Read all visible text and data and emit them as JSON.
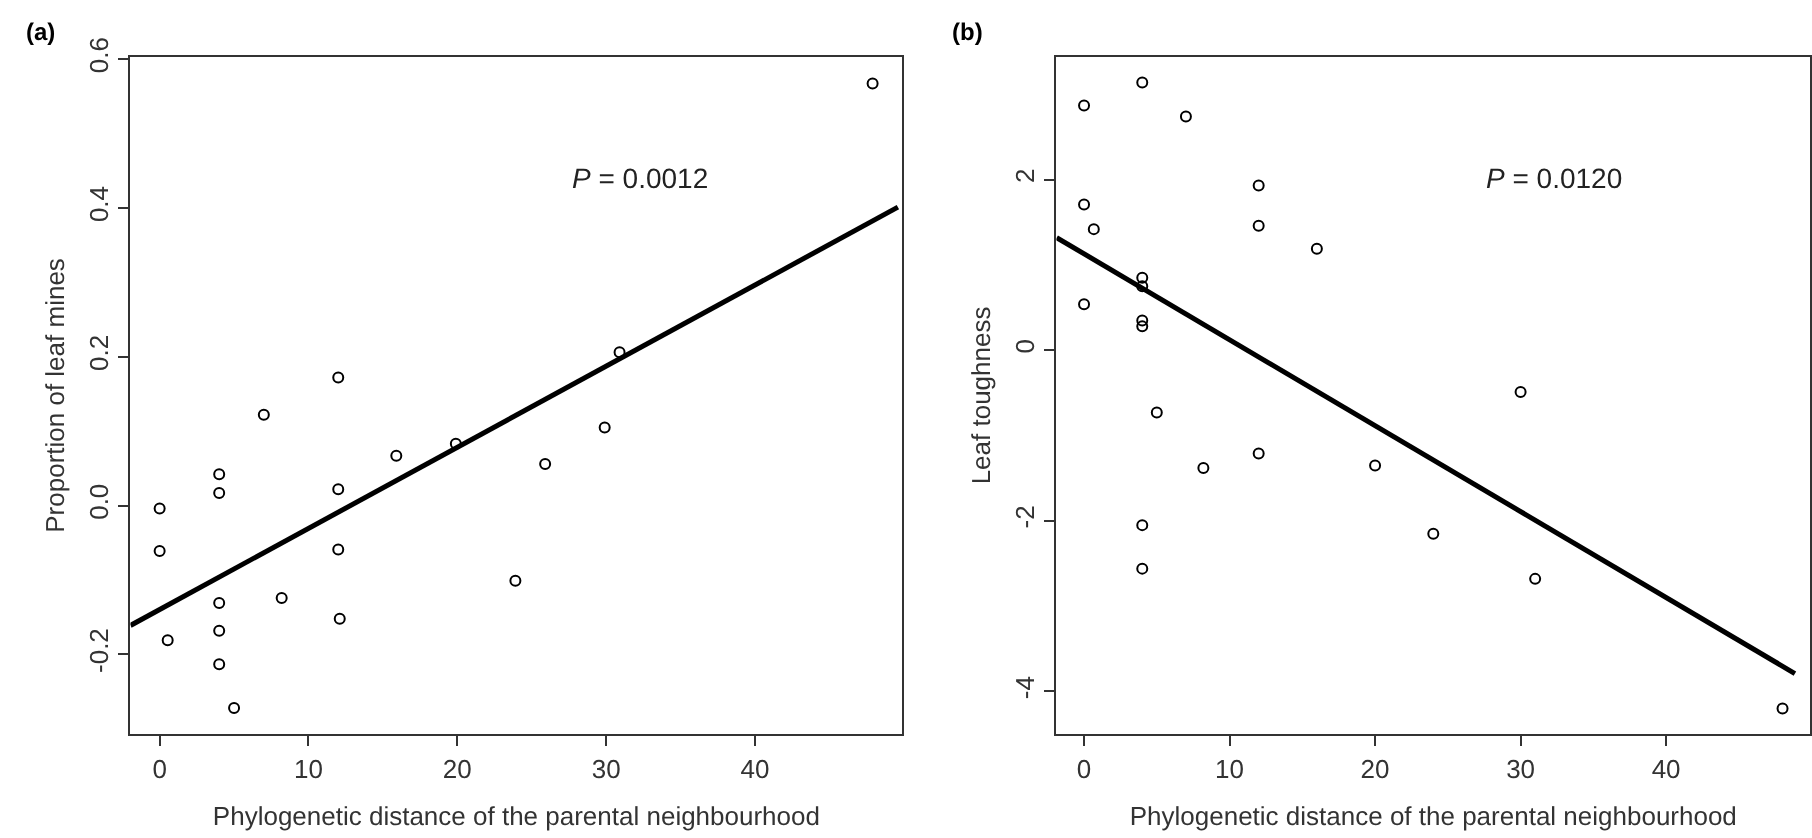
{
  "chart_data": [
    {
      "type": "scatter",
      "title": "(a)",
      "xlabel": "Phylogenetic distance of the parental neighbourhood",
      "ylabel": "Proportion of leaf mines",
      "annotations": [
        "P = 0.0012"
      ],
      "xlim": [
        -1.96,
        49.9
      ],
      "ylim": [
        -0.307,
        0.603
      ],
      "xticks": [
        0,
        10,
        20,
        30,
        40
      ],
      "yticks": [
        -0.2,
        {
          "value": 0.0,
          "label": "0.0"
        },
        0.2,
        0.4,
        0.6
      ],
      "series": [
        {
          "marker": "circle",
          "color": "#000000",
          "x": [
            0,
            0,
            0.54,
            4,
            4,
            4,
            4,
            4,
            5,
            7,
            8.2,
            12,
            12,
            12,
            12.1,
            15.9,
            19.9,
            23.9,
            25.9,
            29.9,
            30.9,
            47.9
          ],
          "values": [
            -0.004,
            -0.061,
            -0.181,
            0.042,
            0.017,
            -0.131,
            -0.168,
            -0.213,
            -0.272,
            0.122,
            -0.124,
            0.172,
            0.022,
            -0.059,
            -0.152,
            0.067,
            0.083,
            -0.101,
            0.056,
            0.105,
            0.206,
            0.567
          ]
        },
        {
          "type": "line",
          "marker": "none",
          "line_style": "solid",
          "color": "#000000",
          "x": [
            -1.96,
            49.6
          ],
          "values": [
            -0.161,
            0.401
          ]
        }
      ]
    },
    {
      "type": "scatter",
      "title": "(b)",
      "xlabel": "Phylogenetic distance of the parental neighbourhood",
      "ylabel": "Leaf toughness",
      "annotations": [
        "P = 0.0120"
      ],
      "xlim": [
        -1.9,
        49.9
      ],
      "ylim": [
        -4.5,
        3.44
      ],
      "xticks": [
        0,
        10,
        20,
        30,
        40
      ],
      "yticks": [
        -4,
        -2,
        0,
        2
      ],
      "series": [
        {
          "marker": "circle",
          "color": "#000000",
          "x": [
            0,
            0,
            0.67,
            0,
            4,
            4,
            4,
            4,
            4,
            5,
            4,
            4,
            7,
            8.2,
            12,
            12,
            12,
            16,
            20,
            24,
            30,
            31,
            48
          ],
          "values": [
            2.87,
            1.71,
            1.42,
            0.54,
            3.14,
            0.85,
            0.75,
            0.35,
            0.28,
            -0.73,
            -2.05,
            -2.56,
            2.74,
            -1.38,
            1.93,
            1.46,
            -1.21,
            1.19,
            -1.35,
            -2.15,
            -0.49,
            -2.68,
            -4.2
          ]
        },
        {
          "type": "line",
          "marker": "none",
          "line_style": "solid",
          "color": "#000000",
          "x": [
            -1.88,
            48.85
          ],
          "values": [
            1.32,
            -3.79
          ]
        }
      ]
    }
  ]
}
